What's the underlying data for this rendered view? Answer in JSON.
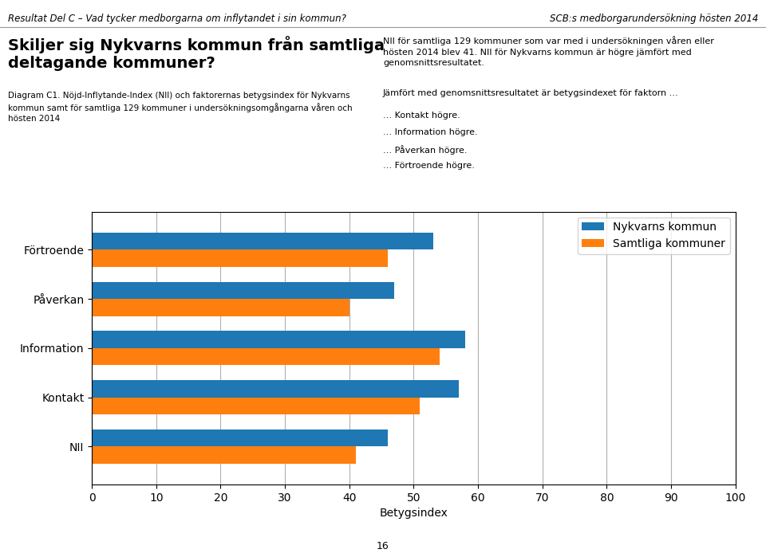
{
  "chart_data": {
    "type": "bar",
    "orientation": "horizontal",
    "title": "Skiljer sig Nykvarns kommun från samtliga\ndeltagande kommuner?",
    "categories": [
      "NII",
      "Kontakt",
      "Information",
      "Påverkan",
      "Förtroende"
    ],
    "series": [
      {
        "name": "Nykvarns kommun",
        "values": [
          46,
          57,
          58,
          47,
          53
        ]
      },
      {
        "name": "Samtliga kommuner",
        "values": [
          41,
          51,
          54,
          40,
          46
        ]
      }
    ],
    "xlabel": "Betygsindex",
    "xlim": [
      0,
      100
    ],
    "xticks": [
      0,
      10,
      20,
      30,
      40,
      50,
      60,
      70,
      80,
      90,
      100
    ],
    "grid": true,
    "legend": "upper right",
    "annotations": [
      "Resultat Del C – Vad tycker medborgarna om inflytandet i sin kommun?",
      "SCB:s medborgarundersökning hösten 2014",
      "Diagram C1. Nöjd-Inflytande-Index (NII) och faktorernas betygsindex för Nykvarns\nkommun samt för samtliga 129 kommuner i undersökningsomgångarna våren och\nhösten 2014",
      "NII för samtliga 129 kommuner som var med i undersökningen våren eller\nhösten 2014 blev 41. NII för Nykvarns kommun är högre jämfört med\ngenomsnittsresultatet.",
      "Jämfört med genomsnittsresultatet är betygsindexet för faktorn …",
      "… Kontakt högre.",
      "… Information högre.",
      "… Påverkan högre.",
      "… Förtroende högre.",
      "16"
    ]
  }
}
